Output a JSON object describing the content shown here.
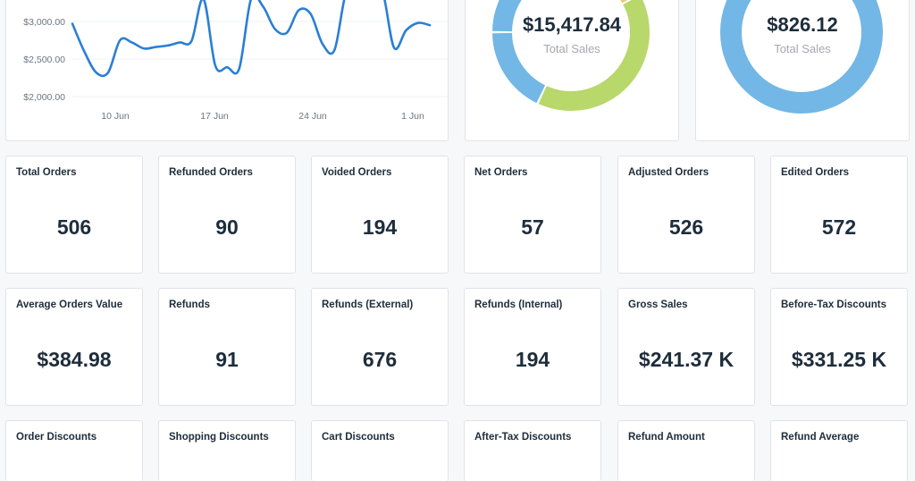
{
  "sales_chart": {
    "y_ticks": [
      "$3,000.00",
      "$2,500.00",
      "$2,000.00"
    ],
    "x_ticks": [
      "10 Jun",
      "17 Jun",
      "24 Jun",
      "1 Jun"
    ],
    "line_color": "#2a7fd4"
  },
  "chart_data": [
    {
      "type": "line",
      "x_labels": [
        "10 Jun",
        "17 Jun",
        "24 Jun",
        "1 Jun"
      ],
      "y_ticks": [
        3000,
        2500,
        2000
      ],
      "ylim": [
        2000,
        3450
      ],
      "grid": true,
      "values": [
        2970,
        2600,
        2320,
        2320,
        2750,
        2720,
        2640,
        2660,
        2680,
        2720,
        2740,
        3300,
        2410,
        2390,
        2370,
        3300,
        3200,
        2900,
        2850,
        3150,
        3100,
        2700,
        2620,
        3400,
        3350,
        3380,
        3420,
        2650,
        2880,
        2980,
        2950
      ]
    },
    {
      "type": "pie",
      "center_value": "$15,417.84",
      "center_label": "Total Sales",
      "slices": [
        {
          "value": 12,
          "color": "#72b7e5"
        },
        {
          "value": 4,
          "color": "#a9d6f4"
        },
        {
          "value": 26,
          "color": "#f3c478"
        },
        {
          "value": 40,
          "color": "#b8d86b"
        },
        {
          "value": 18,
          "color": "#72b7e5"
        }
      ]
    },
    {
      "type": "pie",
      "center_value": "$826.12",
      "center_label": "Total Sales",
      "slices": [
        {
          "value": 100,
          "color": "#72b7e5"
        }
      ]
    }
  ],
  "cards_row1": [
    {
      "title": "Total Orders",
      "value": "506"
    },
    {
      "title": "Refunded Orders",
      "value": "90"
    },
    {
      "title": "Voided Orders",
      "value": "194"
    },
    {
      "title": "Net Orders",
      "value": "57"
    },
    {
      "title": "Adjusted Orders",
      "value": "526"
    },
    {
      "title": "Edited Orders",
      "value": "572"
    }
  ],
  "cards_row2": [
    {
      "title": "Average Orders Value",
      "value": "$384.98"
    },
    {
      "title": "Refunds",
      "value": "91"
    },
    {
      "title": "Refunds (External)",
      "value": "676"
    },
    {
      "title": "Refunds (Internal)",
      "value": "194"
    },
    {
      "title": "Gross Sales",
      "value": "$241.37 K"
    },
    {
      "title": "Before-Tax Discounts",
      "value": "$331.25 K"
    }
  ],
  "cards_row3": [
    {
      "title": "Order Discounts",
      "value": ""
    },
    {
      "title": "Shopping Discounts",
      "value": ""
    },
    {
      "title": "Cart Discounts",
      "value": ""
    },
    {
      "title": "After-Tax Discounts",
      "value": ""
    },
    {
      "title": "Refund Amount",
      "value": ""
    },
    {
      "title": "Refund Average",
      "value": ""
    }
  ]
}
